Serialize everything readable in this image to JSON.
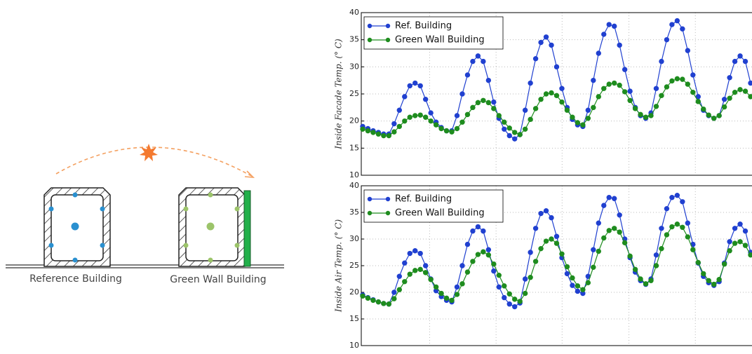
{
  "diagram": {
    "labels": [
      "Reference Building",
      "Green Wall Building"
    ]
  },
  "chart_data": [
    {
      "type": "line",
      "ylabel": "Inside Facade Temp. (° C)",
      "ylim": [
        10,
        40
      ],
      "yticks": [
        10,
        15,
        20,
        25,
        30,
        35,
        40
      ],
      "grid": true,
      "legend": "upper left",
      "series": [
        {
          "name": "Ref. Building",
          "color": "#2040d0",
          "values": [
            19,
            18.6,
            18.2,
            17.9,
            17.6,
            17.6,
            19.5,
            22,
            24.5,
            26.5,
            27,
            26.5,
            24,
            21.5,
            19.8,
            18.8,
            18.2,
            18.2,
            21,
            25,
            28.5,
            31,
            32,
            31,
            27.5,
            23.5,
            20.5,
            18.5,
            17.3,
            16.7,
            17.5,
            22,
            27,
            31.5,
            34.5,
            35.5,
            34,
            30,
            26,
            22.5,
            20.3,
            19.3,
            19,
            22,
            27.5,
            32.5,
            36,
            37.8,
            37.5,
            34,
            29.5,
            25.5,
            22.5,
            21,
            20.5,
            21.5,
            26,
            31,
            35,
            37.8,
            38.5,
            37,
            33,
            28.5,
            24.5,
            22,
            21,
            20.5,
            21,
            24,
            28,
            31,
            32,
            31,
            27
          ]
        },
        {
          "name": "Green Wall Building",
          "color": "#1e8c1e",
          "values": [
            18.5,
            18.2,
            17.9,
            17.6,
            17.3,
            17.3,
            18,
            19,
            20,
            20.7,
            21,
            21.1,
            20.7,
            20,
            19.3,
            18.6,
            18.2,
            18,
            18.6,
            19.8,
            21.2,
            22.5,
            23.4,
            23.8,
            23.4,
            22.3,
            21,
            19.8,
            18.7,
            17.9,
            17.5,
            18.5,
            20.3,
            22.3,
            24,
            25,
            25.2,
            24.7,
            23.5,
            22,
            20.7,
            19.7,
            19.3,
            20.5,
            22.5,
            24.5,
            26,
            26.8,
            27,
            26.6,
            25.4,
            23.8,
            22.3,
            21.2,
            20.7,
            21,
            22.7,
            24.7,
            26.3,
            27.4,
            27.8,
            27.7,
            26.8,
            25.3,
            23.6,
            22.2,
            21.1,
            20.5,
            21,
            22.6,
            24.2,
            25.3,
            25.8,
            25.5,
            24.5
          ]
        }
      ]
    },
    {
      "type": "line",
      "ylabel": "Inside Air Temp. (° C)",
      "ylim": [
        10,
        40
      ],
      "yticks": [
        10,
        15,
        20,
        25,
        30,
        35,
        40
      ],
      "grid": true,
      "legend": "upper left",
      "series": [
        {
          "name": "Ref. Building",
          "color": "#2040d0",
          "values": [
            19.5,
            19,
            18.6,
            18.2,
            17.9,
            17.8,
            20,
            23,
            25.5,
            27.3,
            27.8,
            27.3,
            25,
            22.5,
            20.3,
            19.2,
            18.5,
            18.2,
            21,
            25,
            29,
            31.5,
            32.3,
            31.5,
            28,
            24,
            21,
            19,
            17.8,
            17.3,
            18,
            22.5,
            27.5,
            32,
            34.8,
            35.3,
            34,
            30.5,
            26.5,
            23.5,
            21.3,
            20.2,
            19.8,
            23,
            28,
            33,
            36.3,
            37.8,
            37.6,
            34.5,
            30,
            26.5,
            23.8,
            22.2,
            21.5,
            22.5,
            27,
            32,
            35.7,
            37.8,
            38.2,
            37,
            33,
            29,
            25.5,
            23,
            21.8,
            21.3,
            22,
            25.5,
            29.5,
            32,
            32.8,
            31.5,
            27.5
          ]
        },
        {
          "name": "Green Wall Building",
          "color": "#1e8c1e",
          "values": [
            19.3,
            18.9,
            18.5,
            18.2,
            17.9,
            17.8,
            18.8,
            20.5,
            22,
            23.4,
            24.1,
            24.3,
            23.7,
            22.4,
            21,
            19.8,
            18.9,
            18.5,
            19.6,
            21.6,
            23.8,
            25.8,
            27.1,
            27.6,
            27,
            25.3,
            23.2,
            21.2,
            19.7,
            18.7,
            18.3,
            19.8,
            22.8,
            25.8,
            28.2,
            29.6,
            30,
            29.2,
            27.2,
            24.8,
            22.7,
            21.2,
            20.5,
            21.8,
            24.7,
            27.7,
            30.2,
            31.6,
            32,
            31.3,
            29.3,
            26.8,
            24.3,
            22.5,
            21.6,
            22.2,
            25,
            28.2,
            30.8,
            32.3,
            32.8,
            32.2,
            30.4,
            28,
            25.6,
            23.5,
            22.2,
            21.5,
            22.4,
            25.3,
            27.8,
            29.2,
            29.5,
            28.8,
            27
          ]
        }
      ]
    }
  ]
}
